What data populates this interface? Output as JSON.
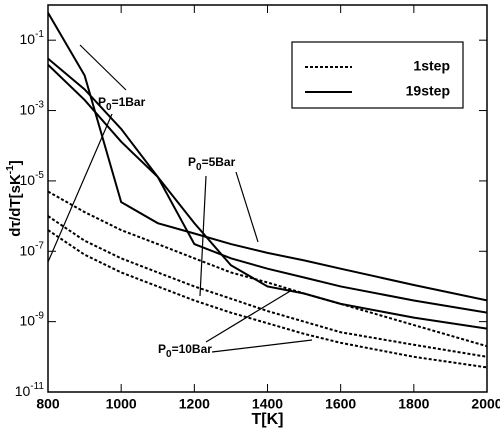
{
  "chart_data": {
    "type": "line",
    "y_label": [
      "dτ/dT[sK",
      "-1",
      "]"
    ],
    "x_label": "T[K]",
    "log_y": true,
    "legend": "top-right",
    "x": [
      800,
      900,
      1000,
      1100,
      1200,
      1300,
      1400,
      1500,
      1600,
      1800,
      2000
    ],
    "xlim": [
      800,
      2000
    ],
    "xticks": [
      800,
      1000,
      1200,
      1400,
      1600,
      1800,
      2000
    ],
    "ylim": [
      1e-11,
      1
    ],
    "yticks": [
      {
        "value": 1e-11,
        "label": "10^-11"
      },
      {
        "value": 1e-09,
        "label": "10^-9"
      },
      {
        "value": 1e-07,
        "label": "10^-7"
      },
      {
        "value": 1e-05,
        "label": "10^-5"
      },
      {
        "value": 0.001,
        "label": "10^-3"
      },
      {
        "value": 0.1,
        "label": "10^-1"
      }
    ],
    "series": [
      {
        "name": "1step",
        "color": "#000000",
        "dash": "dotted",
        "curves": [
          [
            5e-06,
            1.3e-06,
            4e-07,
            1.6e-07,
            6.3e-08,
            2.5e-08,
            1.3e-08,
            6.3e-09,
            3.2e-09,
            8e-10,
            2e-10
          ],
          [
            1e-06,
            2e-07,
            6.3e-08,
            2.5e-08,
            1e-08,
            4.5e-09,
            2e-09,
            1e-09,
            5e-10,
            2.2e-10,
            1e-10
          ],
          [
            4e-07,
            8e-08,
            2.5e-08,
            1e-08,
            4e-09,
            1.8e-09,
            9e-10,
            4.5e-10,
            2.5e-10,
            1e-10,
            5e-11
          ]
        ]
      },
      {
        "name": "19step",
        "color": "#000000",
        "dash": "solid",
        "curves": [
          [
            0.6,
            0.01,
            2.5e-06,
            6.3e-07,
            3.2e-07,
            1.6e-07,
            9e-08,
            5.5e-08,
            3.2e-08,
            1.1e-08,
            4e-09
          ],
          [
            0.03,
            0.004,
            0.0003,
            1.3e-05,
            1.6e-07,
            6.3e-08,
            3.2e-08,
            1.8e-08,
            1e-08,
            4e-09,
            1.8e-09
          ],
          [
            0.02,
            0.002,
            0.00013,
            1.3e-05,
            6.3e-07,
            4e-08,
            1e-08,
            6.3e-09,
            3.2e-09,
            1.3e-09,
            6.3e-10
          ]
        ]
      }
    ],
    "annotations": [
      [
        "P",
        "0",
        "=1Bar"
      ],
      [
        "P",
        "0",
        "=5Bar"
      ],
      [
        "P",
        "0",
        "=10Bar"
      ]
    ]
  }
}
